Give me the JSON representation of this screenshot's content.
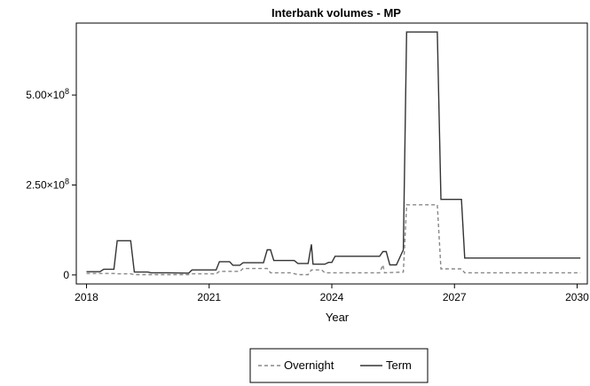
{
  "chart_data": {
    "type": "line",
    "title": "Interbank volumes - MP",
    "xlabel": "Year",
    "ylabel": "",
    "xlim": [
      2017.75,
      2030.25
    ],
    "ylim": [
      -25000000,
      700000000
    ],
    "x_ticks": [
      2018,
      2021,
      2024,
      2027,
      2030
    ],
    "y_ticks": [
      {
        "value": 0,
        "mantissa": "0",
        "exponent": ""
      },
      {
        "value": 250000000,
        "mantissa": "2.50×10",
        "exponent": "8"
      },
      {
        "value": 500000000,
        "mantissa": "5.00×10",
        "exponent": "8"
      }
    ],
    "grid": false,
    "legend_position": "bottom",
    "series": [
      {
        "name": "Term",
        "color": "#333333",
        "dash": "solid",
        "points": [
          [
            2018.0,
            9000000
          ],
          [
            2018.33,
            9000000
          ],
          [
            2018.42,
            16000000
          ],
          [
            2018.67,
            16000000
          ],
          [
            2018.75,
            95000000
          ],
          [
            2019.08,
            95000000
          ],
          [
            2019.17,
            8000000
          ],
          [
            2019.5,
            8000000
          ],
          [
            2019.58,
            6000000
          ],
          [
            2020.0,
            6000000
          ],
          [
            2020.5,
            5000000
          ],
          [
            2020.58,
            14000000
          ],
          [
            2021.17,
            14000000
          ],
          [
            2021.25,
            37000000
          ],
          [
            2021.5,
            37000000
          ],
          [
            2021.58,
            27000000
          ],
          [
            2021.75,
            27000000
          ],
          [
            2021.83,
            34000000
          ],
          [
            2022.33,
            34000000
          ],
          [
            2022.42,
            70000000
          ],
          [
            2022.5,
            70000000
          ],
          [
            2022.58,
            40000000
          ],
          [
            2023.08,
            40000000
          ],
          [
            2023.17,
            32000000
          ],
          [
            2023.42,
            32000000
          ],
          [
            2023.5,
            85000000
          ],
          [
            2023.54,
            30000000
          ],
          [
            2023.83,
            30000000
          ],
          [
            2023.92,
            35000000
          ],
          [
            2024.0,
            35000000
          ],
          [
            2024.08,
            52000000
          ],
          [
            2024.92,
            52000000
          ],
          [
            2025.17,
            52000000
          ],
          [
            2025.25,
            65000000
          ],
          [
            2025.33,
            65000000
          ],
          [
            2025.42,
            28000000
          ],
          [
            2025.58,
            28000000
          ],
          [
            2025.75,
            70000000
          ],
          [
            2025.83,
            675000000
          ],
          [
            2026.58,
            675000000
          ],
          [
            2026.67,
            210000000
          ],
          [
            2027.17,
            210000000
          ],
          [
            2027.25,
            47000000
          ],
          [
            2030.08,
            47000000
          ]
        ]
      },
      {
        "name": "Overnight",
        "color": "#888888",
        "dash": "dashed",
        "points": [
          [
            2018.0,
            4000000
          ],
          [
            2018.67,
            4000000
          ],
          [
            2018.75,
            3000000
          ],
          [
            2019.08,
            3000000
          ],
          [
            2019.17,
            1000000
          ],
          [
            2020.5,
            1000000
          ],
          [
            2020.58,
            3000000
          ],
          [
            2021.17,
            3000000
          ],
          [
            2021.25,
            10000000
          ],
          [
            2021.75,
            10000000
          ],
          [
            2021.83,
            18000000
          ],
          [
            2022.42,
            18000000
          ],
          [
            2022.5,
            6000000
          ],
          [
            2023.0,
            6000000
          ],
          [
            2023.17,
            1000000
          ],
          [
            2023.42,
            1000000
          ],
          [
            2023.5,
            14000000
          ],
          [
            2023.75,
            14000000
          ],
          [
            2023.83,
            6000000
          ],
          [
            2025.17,
            6000000
          ],
          [
            2025.25,
            28000000
          ],
          [
            2025.29,
            6000000
          ],
          [
            2025.75,
            8000000
          ],
          [
            2025.83,
            195000000
          ],
          [
            2026.58,
            195000000
          ],
          [
            2026.67,
            17000000
          ],
          [
            2027.17,
            17000000
          ],
          [
            2027.25,
            6000000
          ],
          [
            2030.08,
            6000000
          ]
        ]
      }
    ]
  },
  "legend": {
    "items": [
      {
        "label": "Overnight",
        "color": "#888888",
        "dash": "dashed"
      },
      {
        "label": "Term",
        "color": "#333333",
        "dash": "solid"
      }
    ]
  }
}
